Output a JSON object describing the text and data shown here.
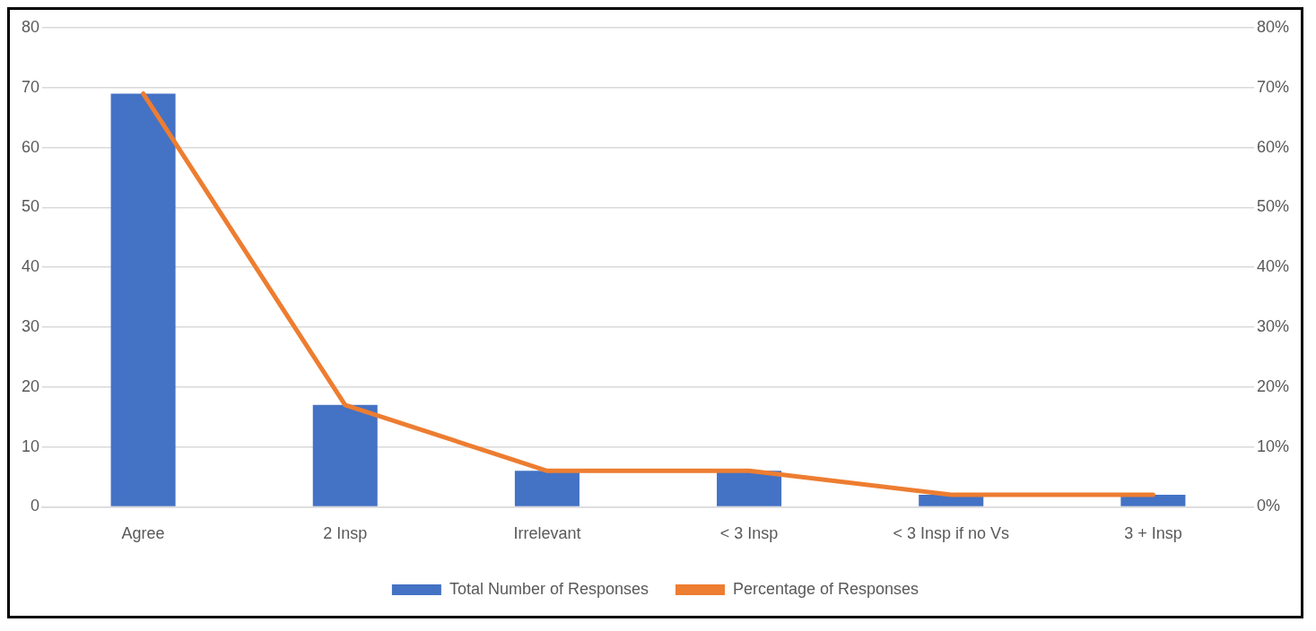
{
  "chart_data": {
    "type": "bar",
    "categories": [
      "Agree",
      "2 Insp",
      "Irrelevant",
      "< 3 Insp",
      "< 3 Insp if no Vs",
      "3 + Insp"
    ],
    "series": [
      {
        "name": "Total Number of Responses",
        "color": "#4472c4",
        "values": [
          69,
          17,
          6,
          6,
          2,
          2
        ]
      },
      {
        "name": "Percentage of Responses",
        "type": "line",
        "axis": "y2",
        "color": "#ed7d31",
        "values": [
          0.69,
          0.17,
          0.06,
          0.06,
          0.02,
          0.02
        ]
      }
    ],
    "ylim": [
      0,
      80
    ],
    "yticks": [
      0,
      10,
      20,
      30,
      40,
      50,
      60,
      70,
      80
    ],
    "y2lim": [
      0,
      0.8
    ],
    "y2ticks": [
      {
        "value": 0,
        "label": "0%"
      },
      {
        "value": 0.1,
        "label": "10%"
      },
      {
        "value": 0.2,
        "label": "20%"
      },
      {
        "value": 0.3,
        "label": "30%"
      },
      {
        "value": 0.4,
        "label": "40%"
      },
      {
        "value": 0.5,
        "label": "50%"
      },
      {
        "value": 0.6,
        "label": "60%"
      },
      {
        "value": 0.7,
        "label": "70%"
      },
      {
        "value": 0.8,
        "label": "80%"
      }
    ],
    "grid": "y",
    "legend": "bottom",
    "marker": "none"
  }
}
